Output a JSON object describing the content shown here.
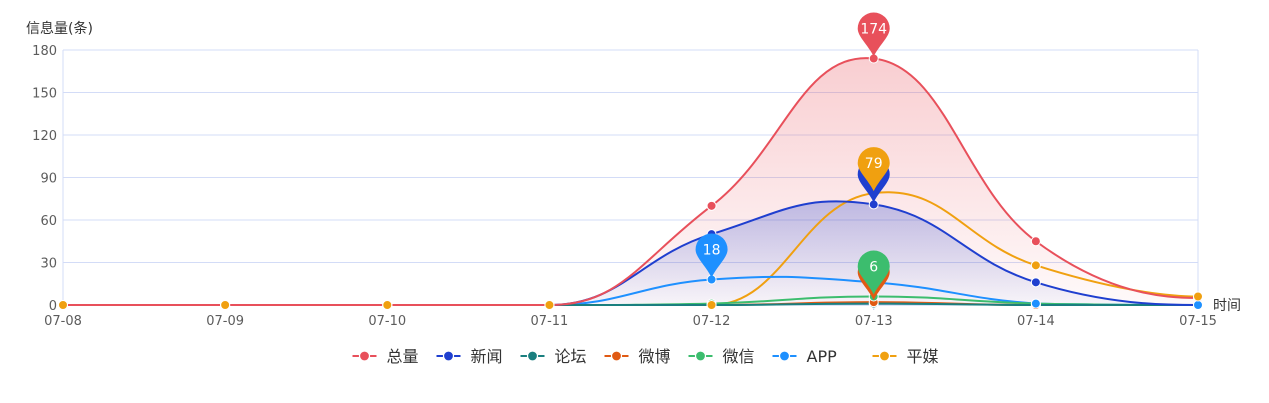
{
  "chart_data": {
    "type": "line",
    "ylabel": "信息量(条)",
    "xlabel": "时间",
    "categories": [
      "07-08",
      "07-09",
      "07-10",
      "07-11",
      "07-12",
      "07-13",
      "07-14",
      "07-15"
    ],
    "yticks": [
      "0",
      "30",
      "60",
      "90",
      "120",
      "150",
      "180"
    ],
    "ylim": [
      0,
      180
    ],
    "grid": true,
    "legend_position": "bottom",
    "series": [
      {
        "name": "总量",
        "color": "#e8505b",
        "area": true,
        "values": [
          0,
          0,
          0,
          0,
          70,
          174,
          45,
          5
        ]
      },
      {
        "name": "新闻",
        "color": "#1f3fcf",
        "area": true,
        "values": [
          0,
          0,
          0,
          0,
          50,
          71,
          16,
          0
        ]
      },
      {
        "name": "论坛",
        "color": "#1a7f7f",
        "area": false,
        "values": [
          0,
          0,
          0,
          0,
          0,
          1,
          0,
          0
        ]
      },
      {
        "name": "微博",
        "color": "#e05a13",
        "area": false,
        "values": [
          0,
          0,
          0,
          0,
          0,
          2,
          0,
          0
        ]
      },
      {
        "name": "微信",
        "color": "#3cbd6e",
        "area": false,
        "values": [
          0,
          0,
          0,
          0,
          1,
          6,
          1,
          0
        ]
      },
      {
        "name": "APP",
        "color": "#1e90ff",
        "area": false,
        "values": [
          0,
          0,
          0,
          0,
          18,
          16,
          1,
          0
        ]
      },
      {
        "name": "平媒",
        "color": "#f0a010",
        "area": false,
        "values": [
          0,
          0,
          0,
          0,
          0,
          79,
          28,
          6
        ]
      }
    ],
    "markers": [
      {
        "series": 0,
        "index": 5,
        "label": "174"
      },
      {
        "series": 1,
        "index": 5,
        "label": ""
      },
      {
        "series": 6,
        "index": 5,
        "label": "79"
      },
      {
        "series": 3,
        "index": 5,
        "label": ""
      },
      {
        "series": 4,
        "index": 5,
        "label": "6"
      },
      {
        "series": 5,
        "index": 4,
        "label": "18"
      }
    ]
  }
}
